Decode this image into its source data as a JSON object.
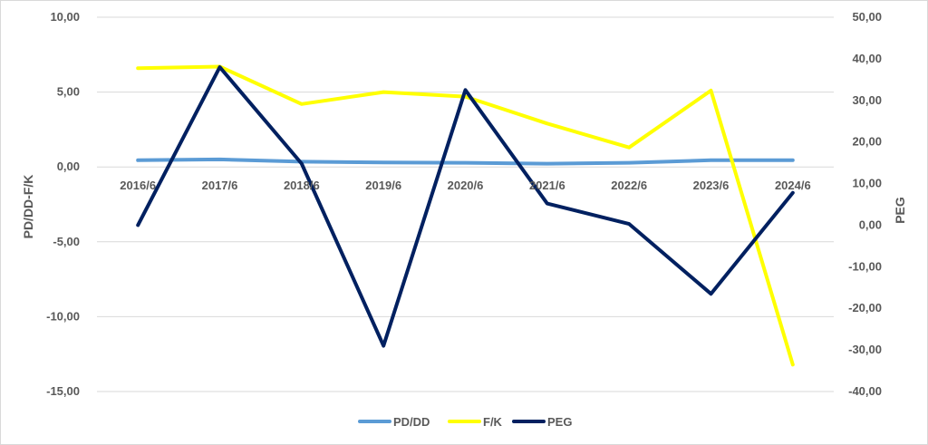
{
  "chart_data": {
    "type": "line",
    "categories": [
      "2016/6",
      "2017/6",
      "2018/6",
      "2019/6",
      "2020/6",
      "2021/6",
      "2022/6",
      "2023/6",
      "2024/6"
    ],
    "ylabel_left": "PD/DD-F/K",
    "ylabel_right": "PEG",
    "ylim_left": [
      -15,
      10
    ],
    "ylim_right": [
      -40,
      50
    ],
    "yticks_left": [
      "10,00",
      "5,00",
      "0,00",
      "-5,00",
      "-10,00",
      "-15,00"
    ],
    "yticks_left_values": [
      10,
      5,
      0,
      -5,
      -10,
      -15
    ],
    "yticks_right": [
      "50,00",
      "40,00",
      "30,00",
      "20,00",
      "10,00",
      "0,00",
      "-10,00",
      "-20,00",
      "-30,00",
      "-40,00"
    ],
    "yticks_right_values": [
      50,
      40,
      30,
      20,
      10,
      0,
      -10,
      -20,
      -30,
      -40
    ],
    "grid": true,
    "legend_position": "bottom",
    "series": [
      {
        "name": "PD/DD",
        "axis": "left",
        "color": "#5B9BD5",
        "values": [
          0.45,
          0.5,
          0.35,
          0.3,
          0.28,
          0.22,
          0.28,
          0.45,
          0.45
        ]
      },
      {
        "name": "F/K",
        "axis": "left",
        "color": "#FFFF00",
        "values": [
          6.6,
          6.7,
          4.2,
          5.0,
          4.7,
          2.9,
          1.3,
          5.1,
          -13.2
        ]
      },
      {
        "name": "PEG",
        "axis": "right",
        "color": "#002060",
        "values": [
          0.0,
          38.0,
          14.8,
          -29.0,
          32.5,
          5.2,
          0.3,
          -16.5,
          7.8
        ]
      }
    ]
  }
}
